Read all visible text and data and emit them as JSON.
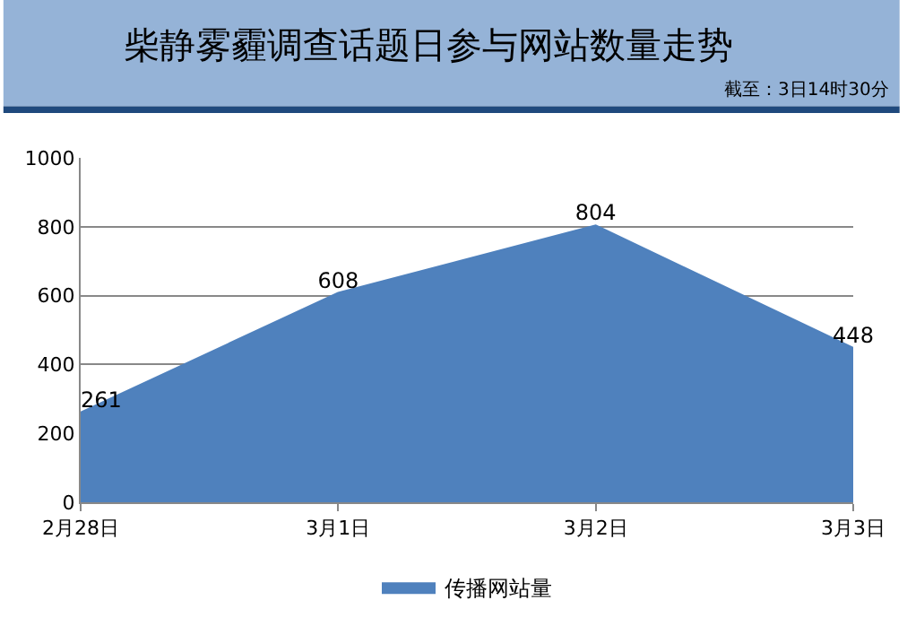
{
  "chart_data": {
    "type": "area",
    "title": "柴静雾霾调查话题日参与网站数量走势",
    "subtitle": "截至：3日14时30分",
    "categories": [
      "2月28日",
      "3月1日",
      "3月2日",
      "3月3日"
    ],
    "series": [
      {
        "name": "传播网站量",
        "color": "#4f81bd",
        "values": [
          261,
          608,
          804,
          448
        ]
      }
    ],
    "ylim": [
      0,
      1000
    ],
    "yticks": [
      0,
      200,
      400,
      600,
      800,
      1000
    ],
    "grid": "y",
    "legend": "bottom",
    "data_labels": true
  }
}
